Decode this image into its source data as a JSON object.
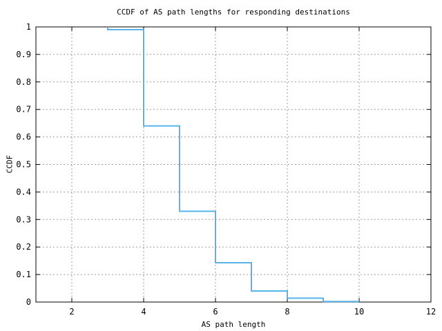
{
  "chart_data": {
    "type": "line",
    "subtype": "step",
    "title": "CCDF of AS path lengths for responding destinations",
    "xlabel": "AS path length",
    "ylabel": "CCDF",
    "xlim": [
      1,
      12
    ],
    "ylim": [
      0,
      1
    ],
    "x_ticks": [
      2,
      4,
      6,
      8,
      10,
      12
    ],
    "x_tick_labels": [
      "2",
      "4",
      "6",
      "8",
      "10",
      "12"
    ],
    "y_ticks": [
      0,
      0.1,
      0.2,
      0.3,
      0.4,
      0.5,
      0.6,
      0.7,
      0.8,
      0.9,
      1
    ],
    "y_tick_labels": [
      "0",
      "0.1",
      "0.2",
      "0.3",
      "0.4",
      "0.5",
      "0.6",
      "0.7",
      "0.8",
      "0.9",
      "1"
    ],
    "grid": true,
    "legend": "none",
    "colors": {
      "line": "#56b4e9",
      "grid": "#9b9b9b",
      "axis": "#000000",
      "background": "#ffffff"
    },
    "series": [
      {
        "name": "CCDF of AS path lengths",
        "points": [
          [
            3,
            1.0
          ],
          [
            3,
            0.99
          ],
          [
            4,
            0.99
          ],
          [
            4,
            0.64
          ],
          [
            5,
            0.64
          ],
          [
            5,
            0.33
          ],
          [
            6,
            0.33
          ],
          [
            6,
            0.143
          ],
          [
            7,
            0.143
          ],
          [
            7,
            0.04
          ],
          [
            8,
            0.04
          ],
          [
            8,
            0.014
          ],
          [
            9,
            0.014
          ],
          [
            9,
            0.002
          ],
          [
            10,
            0.002
          ]
        ]
      }
    ],
    "ccdf_by_path_length": {
      "3": 0.99,
      "4": 0.64,
      "5": 0.33,
      "6": 0.143,
      "7": 0.04,
      "8": 0.014,
      "9": 0.002
    }
  }
}
